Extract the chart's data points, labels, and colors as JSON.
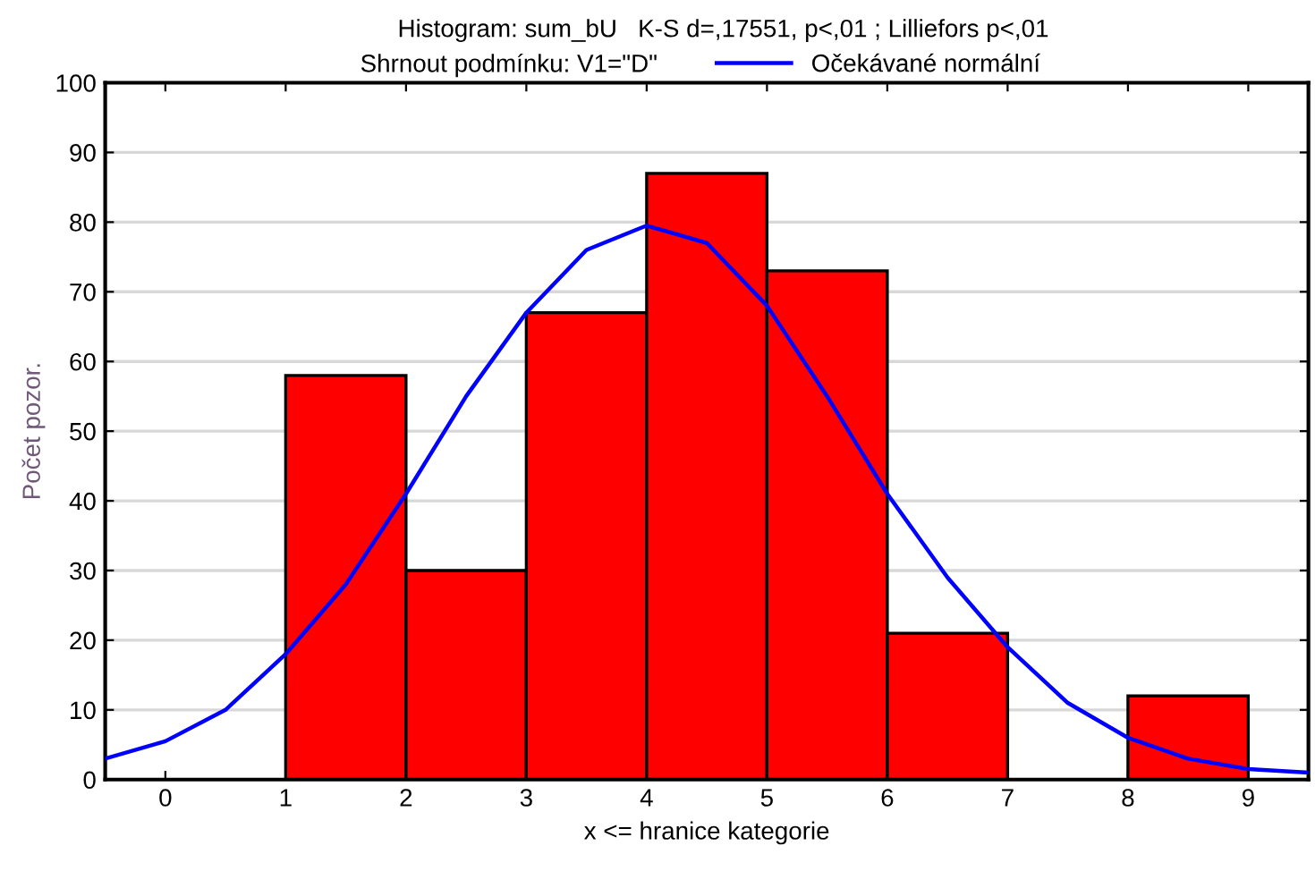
{
  "chart_data": {
    "type": "histogram",
    "title": "Histogram: sum_bU   K-S d=,17551, p<,01 ; Lilliefors p<,01",
    "subtitle": "Shrnout podmínku: V1=\"D\"",
    "xlabel": "x <= hranice kategorie",
    "ylabel": "Počet pozor.",
    "bins": [
      0,
      1,
      2,
      3,
      4,
      5,
      6,
      7,
      8,
      9
    ],
    "series": [
      {
        "color": "#ff0000",
        "values": [
          0,
          58,
          30,
          67,
          87,
          73,
          21,
          0,
          12
        ]
      },
      {
        "type": "line",
        "name": "Očekávané normální",
        "color": "#0000ff",
        "x": [
          -0.5,
          0,
          0.5,
          1,
          1.5,
          2,
          2.5,
          3,
          3.5,
          4,
          4.5,
          5,
          5.5,
          6,
          6.5,
          7,
          7.5,
          8,
          8.5,
          9,
          9.5
        ],
        "values": [
          3,
          5.5,
          10,
          18,
          28,
          41,
          55,
          67,
          76,
          79.5,
          77,
          68,
          55,
          41,
          29,
          19,
          11,
          6,
          3,
          1.5,
          1
        ]
      }
    ],
    "xlim": [
      -0.5,
      9.5
    ],
    "xticks": [
      0,
      1,
      2,
      3,
      4,
      5,
      6,
      7,
      8,
      9
    ],
    "ylim": [
      0,
      100
    ],
    "yticks": [
      0,
      10,
      20,
      30,
      40,
      50,
      60,
      70,
      80,
      90,
      100
    ],
    "grid": "y",
    "legend": "top"
  }
}
